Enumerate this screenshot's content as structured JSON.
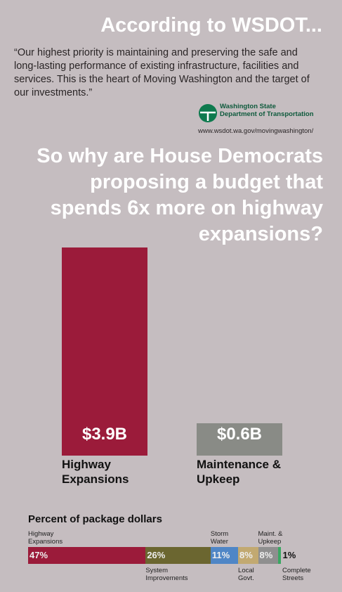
{
  "header": {
    "title": "According to WSDOT...",
    "quote": "“Our highest priority is maintaining and preserving the safe and long-lasting performance of existing infrastructure, facilities and services. This is the heart of Moving Washington and the target of our investments.”",
    "logo_line1": "Washington State",
    "logo_line2": "Department of Transportation",
    "url": "www.wsdot.wa.gov/movingwashington/",
    "question": [
      "So why are House Democrats",
      "proposing a budget that",
      "spends 6x more on highway",
      "expansions?"
    ]
  },
  "chart_data": [
    {
      "type": "bar",
      "categories": [
        "Highway Expansions",
        "Maintenance & Upkeep"
      ],
      "values": [
        3.9,
        0.6
      ],
      "value_labels": [
        "$3.9B",
        "$0.6B"
      ],
      "colors": [
        "#9b1b3a",
        "#898b86"
      ]
    },
    {
      "type": "stacked_bar",
      "title": "Percent of package dollars",
      "categories": [
        "Highway Expansions",
        "System Improvements",
        "Storm Water",
        "Local Govt.",
        "Maint. & Upkeep",
        "Complete Streets"
      ],
      "values": [
        47,
        26,
        11,
        8,
        8,
        1
      ],
      "value_labels": [
        "47%",
        "26%",
        "11%",
        "8%",
        "8%",
        "1%"
      ],
      "colors": [
        "#9b1b3a",
        "#6b6630",
        "#4f86c6",
        "#c2a971",
        "#8f8f8f",
        "#3aa862"
      ]
    }
  ]
}
